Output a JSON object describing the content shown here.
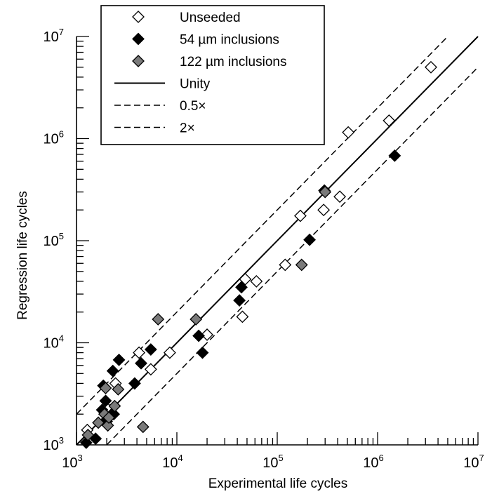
{
  "chart_data": {
    "type": "scatter",
    "x_scale": "log",
    "y_scale": "log",
    "xlabel": "Experimental life cycles",
    "ylabel": "Regression life cycles",
    "xlim": [
      1000,
      10000000
    ],
    "ylim": [
      1000,
      10000000
    ],
    "tick_labels": {
      "base": "10",
      "exponents": [
        "3",
        "4",
        "5",
        "6",
        "7"
      ]
    },
    "legend": {
      "placement": "top-left",
      "entries": [
        {
          "label": "Unseeded",
          "kind": "marker",
          "style": "open"
        },
        {
          "label": "54 µm inclusions",
          "kind": "marker",
          "style": "filled"
        },
        {
          "label": "122 µm inclusions",
          "kind": "marker",
          "style": "gray"
        },
        {
          "label": "Unity",
          "kind": "line",
          "dash": "solid"
        },
        {
          "label": "0.5×",
          "kind": "line",
          "dash": "dashed"
        },
        {
          "label": "2×",
          "kind": "line",
          "dash": "dashed"
        }
      ]
    },
    "reference_lines": [
      {
        "ratio": 1,
        "dash": "solid"
      },
      {
        "ratio": 0.5,
        "dash": "dashed"
      },
      {
        "ratio": 2,
        "dash": "dashed"
      }
    ],
    "series": [
      {
        "style": "open",
        "points": [
          [
            1280,
            1400
          ],
          [
            2000,
            2300
          ],
          [
            2450,
            4000
          ],
          [
            4200,
            8000
          ],
          [
            5500,
            5500
          ],
          [
            8500,
            8000
          ],
          [
            20000,
            12000
          ],
          [
            45000,
            18000
          ],
          [
            48000,
            42000
          ],
          [
            62000,
            40000
          ],
          [
            120000,
            58000
          ],
          [
            170000,
            175000
          ],
          [
            290000,
            200000
          ],
          [
            420000,
            270000
          ],
          [
            510000,
            1150000
          ],
          [
            1300000,
            1500000
          ],
          [
            3400000,
            5000000
          ]
        ]
      },
      {
        "style": "filled",
        "points": [
          [
            1250,
            1050
          ],
          [
            1550,
            1150
          ],
          [
            1800,
            2200
          ],
          [
            1850,
            3800
          ],
          [
            1950,
            2700
          ],
          [
            2000,
            1700
          ],
          [
            2300,
            5300
          ],
          [
            2350,
            2000
          ],
          [
            2650,
            6800
          ],
          [
            3800,
            4000
          ],
          [
            4400,
            6300
          ],
          [
            5500,
            8600
          ],
          [
            16500,
            11700
          ],
          [
            18000,
            8000
          ],
          [
            42000,
            26000
          ],
          [
            44000,
            35000
          ],
          [
            210000,
            102000
          ],
          [
            295000,
            310000
          ],
          [
            1480000,
            680000
          ]
        ]
      },
      {
        "style": "gray",
        "points": [
          [
            1300,
            1250
          ],
          [
            1650,
            1650
          ],
          [
            1900,
            2000
          ],
          [
            1950,
            3600
          ],
          [
            2050,
            1550
          ],
          [
            2100,
            1850
          ],
          [
            2400,
            2400
          ],
          [
            2600,
            3500
          ],
          [
            4600,
            1500
          ],
          [
            6500,
            17000
          ],
          [
            15500,
            17000
          ],
          [
            175000,
            58000
          ],
          [
            300000,
            300000
          ]
        ]
      }
    ]
  }
}
